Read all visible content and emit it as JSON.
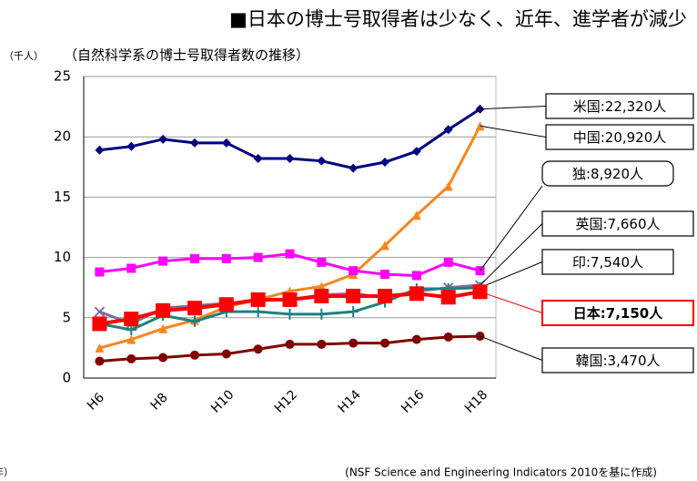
{
  "chart_data": {
    "type": "line",
    "title": "■日本の博士号取得者は少なく、近年、進学者が減少",
    "subtitle": "（自然科学系の博士号取得者数の推移）",
    "y_label": "（千人）",
    "x_label": "（年）",
    "source": "(NSF Science and Engineering Indicators 2010を基に作成)",
    "categories": [
      "H6",
      null,
      "H8",
      null,
      "H10",
      null,
      "H12",
      null,
      "H14",
      null,
      "H16",
      null,
      "H18"
    ],
    "ylim": [
      0,
      25
    ],
    "yticks": [
      0,
      5,
      10,
      15,
      20,
      25
    ],
    "grid": true,
    "series": [
      {
        "name": "米国:22,320人",
        "color": "#000080",
        "marker": "diamond",
        "values": [
          18.9,
          19.2,
          19.8,
          19.5,
          19.5,
          18.2,
          18.2,
          18.0,
          17.4,
          17.9,
          18.8,
          20.6,
          22.3
        ]
      },
      {
        "name": "中国:20,920人",
        "color": "#f7861c",
        "marker": "triangle",
        "values": [
          2.5,
          3.2,
          4.1,
          4.8,
          5.9,
          6.5,
          7.2,
          7.6,
          8.6,
          11.0,
          13.5,
          15.9,
          20.9
        ]
      },
      {
        "name": "独:8,920人",
        "color": "#ff00ff",
        "marker": "square",
        "values": [
          8.8,
          9.1,
          9.7,
          9.9,
          9.9,
          10.0,
          10.3,
          9.6,
          8.9,
          8.6,
          8.5,
          9.6,
          8.9
        ]
      },
      {
        "name": "英国:7,660人",
        "color": "#7a6f9e",
        "marker": "x",
        "values": [
          5.5,
          4.5,
          5.8,
          6.0,
          6.2,
          6.4,
          6.5,
          6.9,
          7.0,
          6.7,
          7.2,
          7.5,
          7.7
        ]
      },
      {
        "name": "印:7,540人",
        "color": "#1e8080",
        "marker": "plus",
        "values": [
          4.5,
          4.0,
          5.2,
          4.7,
          5.5,
          5.5,
          5.3,
          5.3,
          5.5,
          6.3,
          7.4,
          7.4,
          7.5
        ]
      },
      {
        "name": "日本:7,150人",
        "color": "#ff0000",
        "marker": "square",
        "highlight": true,
        "values": [
          4.5,
          4.9,
          5.6,
          5.8,
          6.1,
          6.5,
          6.5,
          6.8,
          6.8,
          6.8,
          7.0,
          6.7,
          7.15
        ]
      },
      {
        "name": "韓国:3,470人",
        "color": "#800000",
        "marker": "circle",
        "values": [
          1.4,
          1.6,
          1.7,
          1.9,
          2.0,
          2.4,
          2.8,
          2.8,
          2.9,
          2.9,
          3.2,
          3.4,
          3.47
        ]
      }
    ]
  }
}
